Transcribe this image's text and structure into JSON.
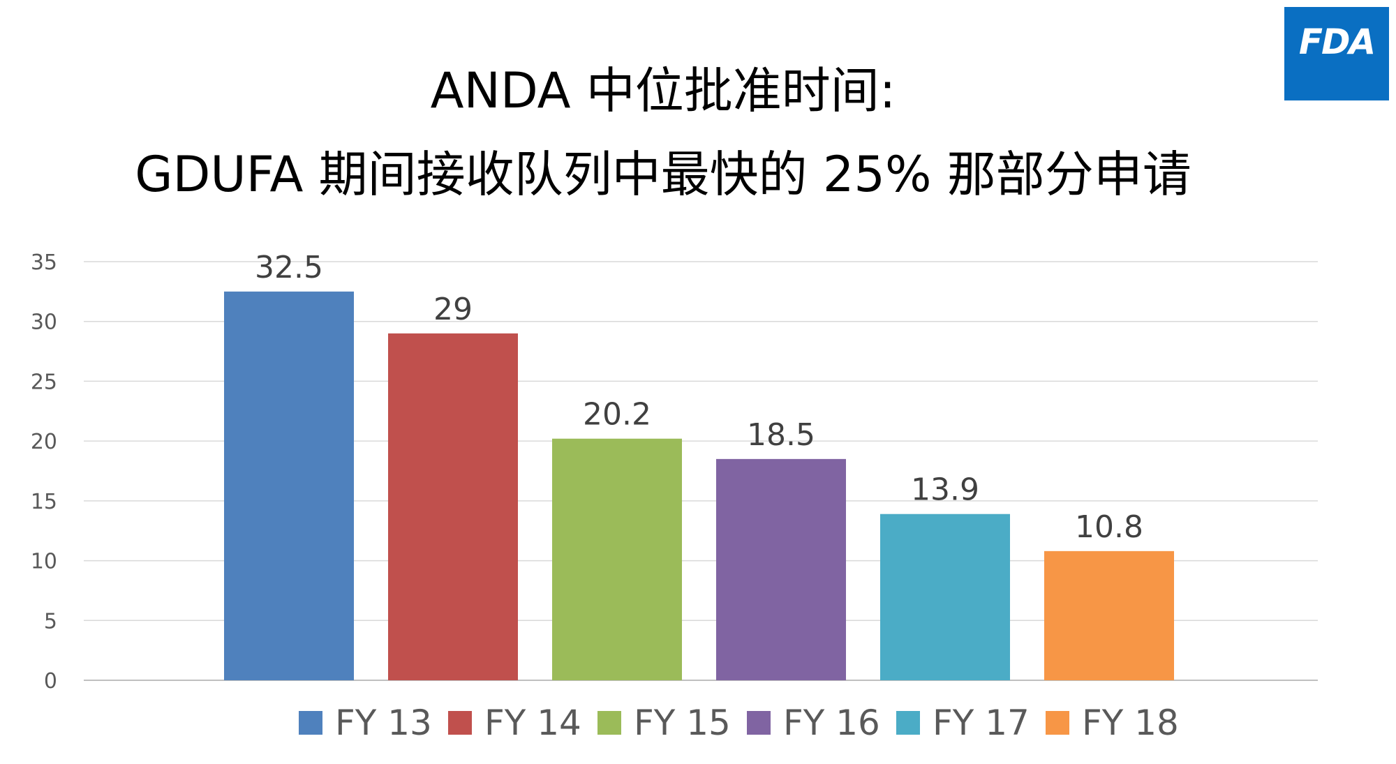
{
  "title": {
    "line1": "ANDA 中位批准时间:",
    "line2": "GDUFA 期间接收队列中最快的 25% 那部分申请"
  },
  "logo": {
    "text": "FDA",
    "color": "#0a6fc2"
  },
  "chart_data": {
    "type": "bar",
    "title": "ANDA 中位批准时间: GDUFA 期间接收队列中最快的 25% 那部分申请",
    "categories": [
      "FY 13",
      "FY 14",
      "FY 15",
      "FY 16",
      "FY 17",
      "FY 18"
    ],
    "values": [
      32.5,
      29,
      20.2,
      18.5,
      13.9,
      10.8
    ],
    "value_labels": [
      "32.5",
      "29",
      "20.2",
      "18.5",
      "13.9",
      "10.8"
    ],
    "colors": [
      "#4f81bd",
      "#c0504d",
      "#9bbb59",
      "#8064a2",
      "#4bacc6",
      "#f79646"
    ],
    "ylim": [
      0,
      35
    ],
    "yticks": [
      0,
      5,
      10,
      15,
      20,
      25,
      30,
      35
    ],
    "grid": true,
    "legend": "bottom",
    "xlabel": "",
    "ylabel": ""
  }
}
